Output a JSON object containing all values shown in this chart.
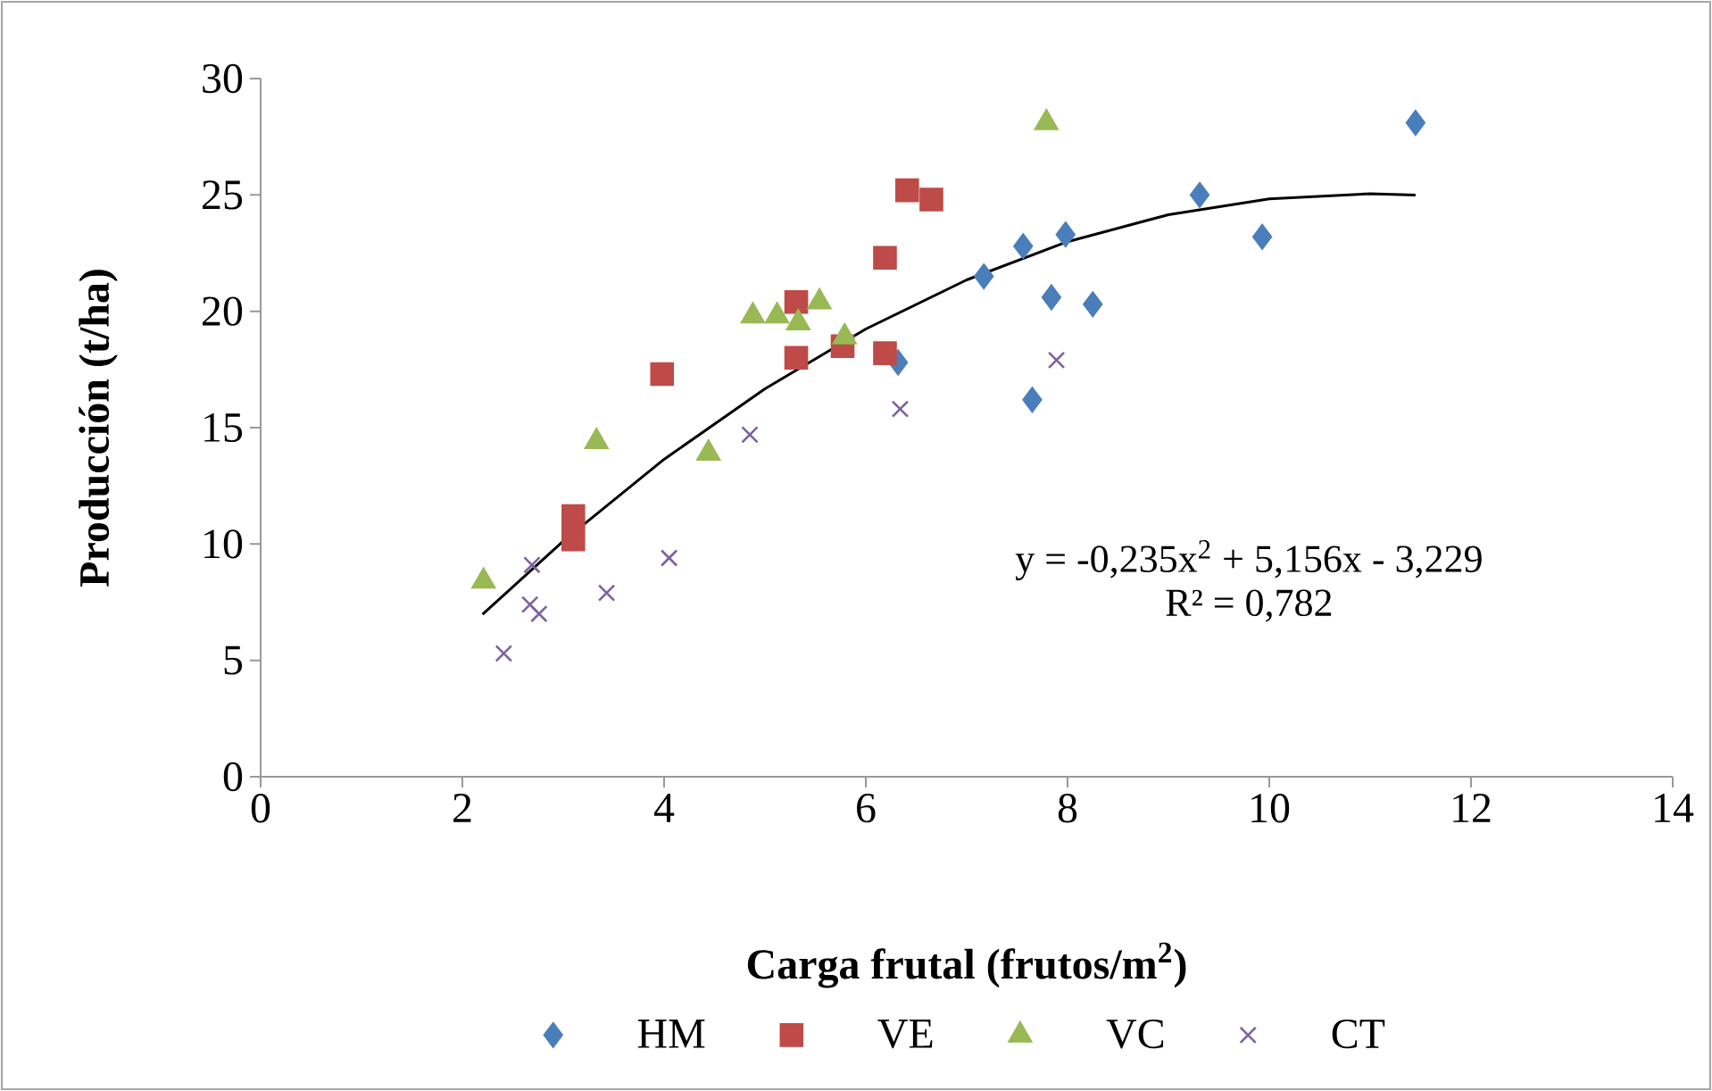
{
  "chart_data": {
    "type": "scatter",
    "xlabel": "Carga frutal (frutos/m$^{2}$)",
    "ylabel": "Producción (t/ha)",
    "xlim": [
      0,
      14
    ],
    "ylim": [
      0,
      30
    ],
    "xticks": [
      0,
      2,
      4,
      6,
      8,
      10,
      12,
      14
    ],
    "yticks": [
      0,
      5,
      10,
      15,
      20,
      25,
      30
    ],
    "grid": false,
    "legend": "bottom",
    "annotations": [
      "y = -0,235x$^{2}$ + 5,156x - 3,229",
      "R² = 0,782"
    ],
    "series": [
      {
        "name": "HM",
        "color": "#4a7ebb",
        "marker": "diamond",
        "x": [
          6.32,
          7.17,
          7.56,
          7.65,
          7.84,
          7.98,
          8.25,
          9.31,
          9.93,
          11.45
        ],
        "values": [
          17.8,
          21.5,
          22.8,
          16.2,
          20.6,
          23.3,
          20.3,
          25.0,
          23.2,
          28.1
        ]
      },
      {
        "name": "VE",
        "color": "#be4b48",
        "marker": "square",
        "x": [
          3.98,
          3.1,
          3.1,
          5.31,
          5.31,
          5.77,
          6.19,
          6.19,
          6.41,
          6.65
        ],
        "values": [
          17.3,
          11.2,
          10.2,
          20.4,
          18.0,
          18.5,
          22.3,
          18.2,
          25.2,
          24.8
        ]
      },
      {
        "name": "VC",
        "color": "#98b954",
        "marker": "triangle",
        "x": [
          2.21,
          3.33,
          4.44,
          4.88,
          5.12,
          5.33,
          5.54,
          5.79,
          7.79
        ],
        "values": [
          8.4,
          14.4,
          13.9,
          19.8,
          19.8,
          19.5,
          20.4,
          18.9,
          28.1
        ]
      },
      {
        "name": "CT",
        "color": "#7d60a0",
        "marker": "cross",
        "x": [
          2.41,
          2.69,
          2.67,
          2.76,
          3.43,
          4.05,
          4.85,
          6.34,
          7.89
        ],
        "values": [
          5.3,
          9.1,
          7.4,
          7.0,
          7.9,
          9.4,
          14.7,
          15.8,
          17.9
        ]
      },
      {
        "type": "line",
        "color": "#000000",
        "marker": "none",
        "x": [
          2.2,
          3,
          4,
          5,
          6,
          7,
          8,
          9,
          10,
          11,
          11.45
        ],
        "values": [
          6.98,
          10.12,
          13.64,
          16.67,
          19.24,
          21.35,
          22.99,
          24.15,
          24.83,
          25.05,
          24.99
        ]
      }
    ]
  }
}
